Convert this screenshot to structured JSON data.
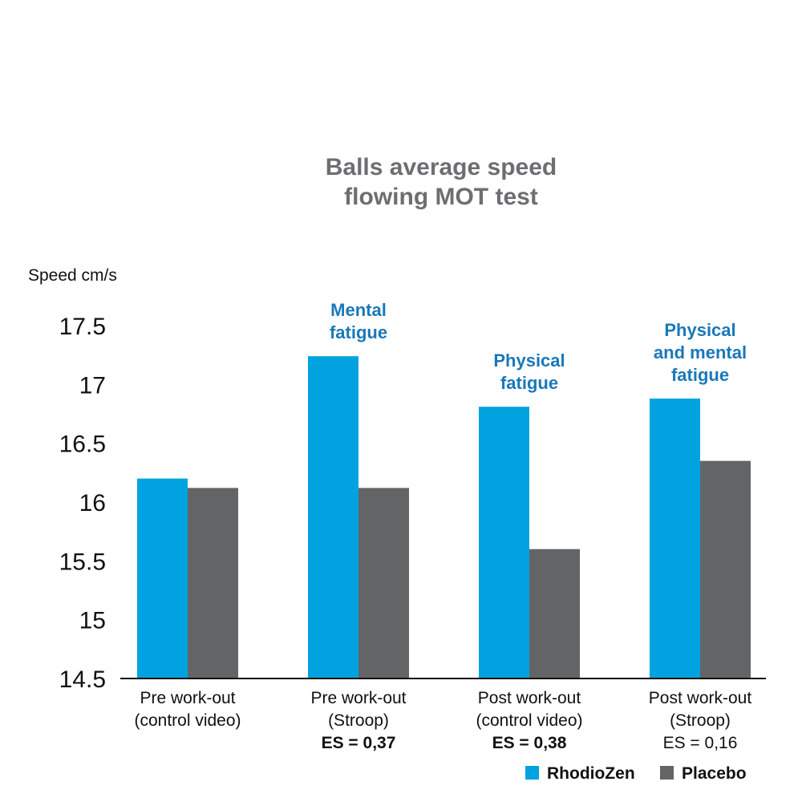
{
  "chart_data": {
    "type": "bar",
    "title_lines": [
      "Balls average speed",
      "flowing MOT test"
    ],
    "ylabel": "Speed cm/s",
    "ylim": [
      14.5,
      17.5
    ],
    "yticks": [
      "17.5",
      "17",
      "16.5",
      "16",
      "15.5",
      "15",
      "14.5"
    ],
    "categories": [
      [
        "Pre work-out",
        "(control video)"
      ],
      [
        "Pre work-out",
        "(Stroop)"
      ],
      [
        "Post work-out",
        "(control video)"
      ],
      [
        "Post work-out",
        "(Stroop)"
      ]
    ],
    "effect_sizes": [
      "",
      "ES = 0,37",
      "ES = 0,38",
      "ES = 0,16"
    ],
    "effect_size_bold": [
      false,
      true,
      true,
      false
    ],
    "annotations": [
      [],
      [
        "Mental",
        "fatigue"
      ],
      [
        "Physical",
        "fatigue"
      ],
      [
        "Physical",
        "and mental",
        "fatigue"
      ]
    ],
    "series": [
      {
        "name": "RhodioZen",
        "color": "#00a3e0",
        "values": [
          16.2,
          17.24,
          16.81,
          16.88
        ]
      },
      {
        "name": "Placebo",
        "color": "#636466",
        "values": [
          16.12,
          16.12,
          15.6,
          16.35
        ]
      }
    ],
    "grid": false,
    "legend_position": "bottom-right",
    "title_color": "#6d6e70",
    "annotation_color": "#1a78b8"
  }
}
